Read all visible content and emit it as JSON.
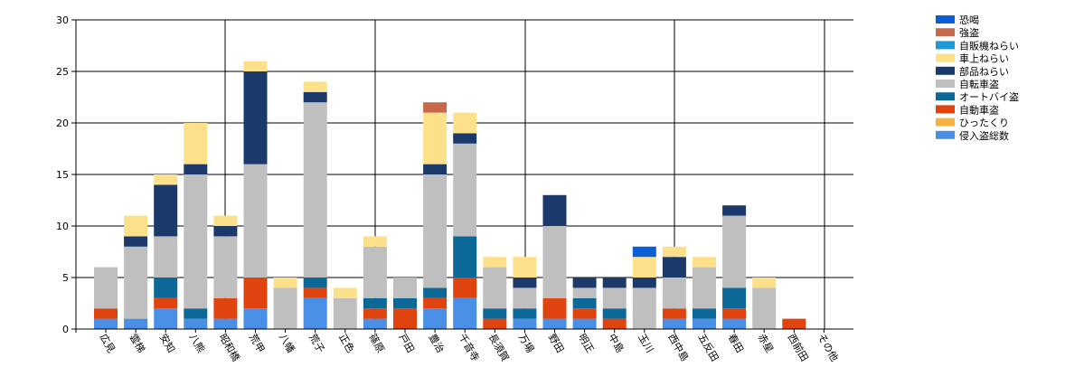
{
  "chart_data": {
    "type": "bar",
    "stacked": true,
    "ylim": [
      0,
      30
    ],
    "yticks": [
      0,
      5,
      10,
      15,
      20,
      25,
      30
    ],
    "grid": "vertical and horizontal gridlines",
    "legend_position": "top-right",
    "categories": [
      "広見",
      "雲梯",
      "安知",
      "八熊",
      "昭和橋",
      "荒甲",
      "八幡",
      "荒子",
      "正色",
      "篠原",
      "戸田",
      "豊治",
      "千音寺",
      "長須賀",
      "万場",
      "野田",
      "明正",
      "中島",
      "玉川",
      "西中島",
      "五反田",
      "春田",
      "赤星",
      "西前田",
      "その他"
    ],
    "series": [
      {
        "name": "侵入盗総数",
        "color": "#4a8fe6",
        "values": [
          1,
          1,
          2,
          1,
          1,
          2,
          0,
          3,
          0,
          1,
          0,
          2,
          3,
          0,
          1,
          1,
          1,
          0,
          0,
          1,
          1,
          1,
          0,
          0,
          0
        ]
      },
      {
        "name": "ひったくり",
        "color": "#f5b240",
        "values": [
          0,
          0,
          0,
          0,
          0,
          0,
          0,
          0,
          0,
          0,
          0,
          0,
          0,
          0,
          0,
          0,
          0,
          0,
          0,
          0,
          0,
          0,
          0,
          0,
          0
        ]
      },
      {
        "name": "自動車盗",
        "color": "#e0440e",
        "values": [
          1,
          0,
          1,
          0,
          2,
          3,
          0,
          1,
          0,
          1,
          2,
          1,
          2,
          1,
          0,
          2,
          1,
          1,
          0,
          1,
          0,
          1,
          0,
          1,
          0
        ]
      },
      {
        "name": "オートバイ盗",
        "color": "#0c6997",
        "values": [
          0,
          0,
          2,
          1,
          0,
          0,
          0,
          1,
          0,
          1,
          1,
          1,
          4,
          1,
          1,
          0,
          1,
          1,
          0,
          0,
          1,
          2,
          0,
          0,
          0
        ]
      },
      {
        "name": "自転車盗",
        "color": "#bfbfbf",
        "values": [
          4,
          7,
          4,
          13,
          6,
          11,
          4,
          17,
          3,
          5,
          2,
          11,
          9,
          4,
          2,
          7,
          1,
          2,
          4,
          3,
          4,
          7,
          4,
          0,
          0
        ]
      },
      {
        "name": "部品ねらい",
        "color": "#1b3a6b",
        "values": [
          0,
          1,
          5,
          1,
          1,
          9,
          0,
          1,
          0,
          0,
          0,
          1,
          1,
          0,
          1,
          3,
          1,
          1,
          1,
          2,
          0,
          1,
          0,
          0,
          0
        ]
      },
      {
        "name": "車上ねらい",
        "color": "#fde18a",
        "values": [
          0,
          2,
          1,
          4,
          1,
          1,
          1,
          1,
          1,
          1,
          0,
          5,
          2,
          1,
          2,
          0,
          0,
          0,
          2,
          1,
          1,
          0,
          1,
          0,
          0
        ]
      },
      {
        "name": "自販機ねらい",
        "color": "#1e9ad6",
        "values": [
          0,
          0,
          0,
          0,
          0,
          0,
          0,
          0,
          0,
          0,
          0,
          0,
          0,
          0,
          0,
          0,
          0,
          0,
          0,
          0,
          0,
          0,
          0,
          0,
          0
        ]
      },
      {
        "name": "強盗",
        "color": "#c8684a",
        "values": [
          0,
          0,
          0,
          0,
          0,
          0,
          0,
          0,
          0,
          0,
          0,
          1,
          0,
          0,
          0,
          0,
          0,
          0,
          0,
          0,
          0,
          0,
          0,
          0,
          0
        ]
      },
      {
        "name": "恐喝",
        "color": "#0b5fd6",
        "values": [
          0,
          0,
          0,
          0,
          0,
          0,
          0,
          0,
          0,
          0,
          0,
          0,
          0,
          0,
          0,
          0,
          0,
          0,
          1,
          0,
          0,
          0,
          0,
          0,
          0
        ]
      }
    ]
  }
}
